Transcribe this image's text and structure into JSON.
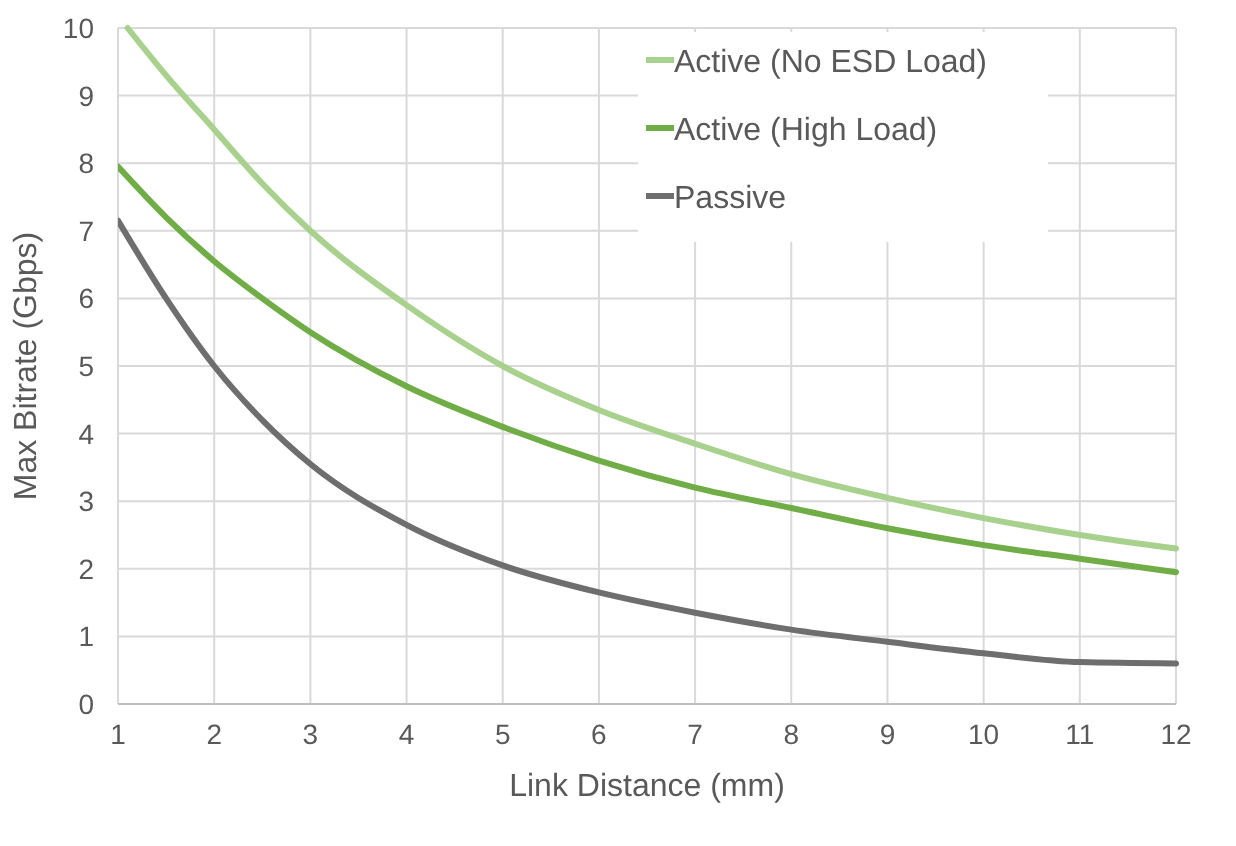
{
  "chart_data": {
    "type": "line",
    "xlabel": "Link Distance (mm)",
    "ylabel": "Max Bitrate (Gbps)",
    "xlim": [
      1,
      12
    ],
    "xticks": [
      1,
      2,
      3,
      4,
      5,
      6,
      7,
      8,
      9,
      10,
      11,
      12
    ],
    "ylim": [
      0,
      10
    ],
    "yticks": [
      0,
      1,
      2,
      3,
      4,
      5,
      6,
      7,
      8,
      9,
      10
    ],
    "grid": true,
    "legend": "top right",
    "marker": "none",
    "line_style": "solid",
    "series": [
      {
        "name": "Active (No ESD Load)",
        "color": "#a9d18e",
        "x": [
          1.1,
          1.5,
          2,
          2.5,
          3,
          4,
          5,
          6,
          7,
          8,
          9,
          10,
          11,
          12
        ],
        "values": [
          10,
          9.3,
          8.5,
          7.7,
          7.0,
          5.9,
          5.0,
          4.35,
          3.85,
          3.4,
          3.05,
          2.75,
          2.5,
          2.3
        ]
      },
      {
        "name": "Active (High Load)",
        "color": "#70ad47",
        "x": [
          1,
          1.5,
          2,
          2.5,
          3,
          4,
          5,
          6,
          7,
          8,
          9,
          10,
          11,
          12
        ],
        "values": [
          7.95,
          7.2,
          6.55,
          6.0,
          5.5,
          4.7,
          4.1,
          3.6,
          3.2,
          2.9,
          2.6,
          2.35,
          2.15,
          1.95
        ]
      },
      {
        "name": "Passive",
        "color": "#6e6e6e",
        "x": [
          1,
          1.5,
          2,
          2.5,
          3,
          4,
          5,
          6,
          7,
          8,
          9,
          10,
          11,
          12
        ],
        "values": [
          7.15,
          6.0,
          5.0,
          4.2,
          3.55,
          2.65,
          2.05,
          1.65,
          1.35,
          1.1,
          0.92,
          0.75,
          0.62,
          0.6
        ]
      }
    ]
  }
}
